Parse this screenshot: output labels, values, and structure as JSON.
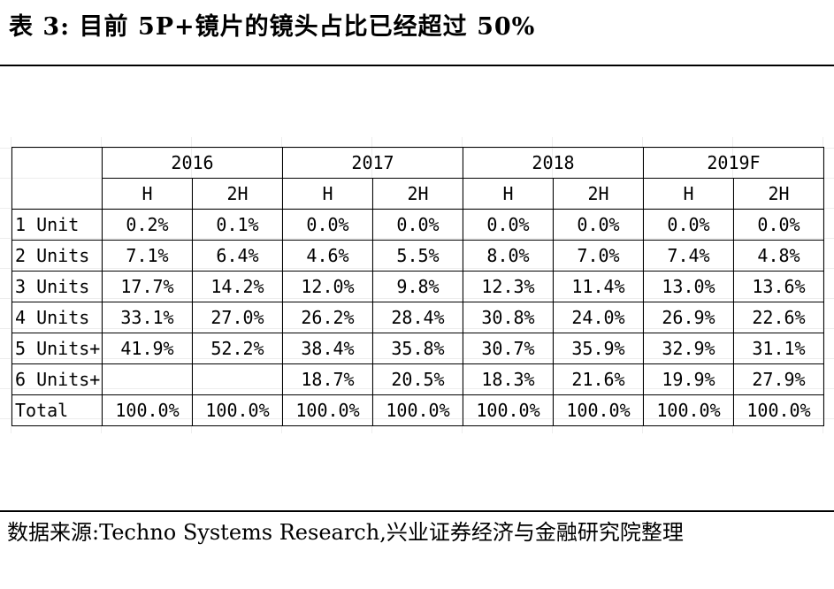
{
  "title": "表 3:  目前 5P+镜片的镜头占比已经超过 50%",
  "table": {
    "years": [
      "2016",
      "2017",
      "2018",
      "2019F"
    ],
    "halves": [
      "H",
      "2H",
      "H",
      "2H",
      "H",
      "2H",
      "H",
      "2H"
    ],
    "rows": [
      {
        "label": "1 Unit",
        "values": [
          "0.2%",
          "0.1%",
          "0.0%",
          "0.0%",
          "0.0%",
          "0.0%",
          "0.0%",
          "0.0%"
        ]
      },
      {
        "label": "2 Units",
        "values": [
          "7.1%",
          "6.4%",
          "4.6%",
          "5.5%",
          "8.0%",
          "7.0%",
          "7.4%",
          "4.8%"
        ]
      },
      {
        "label": "3 Units",
        "values": [
          "17.7%",
          "14.2%",
          "12.0%",
          "9.8%",
          "12.3%",
          "11.4%",
          "13.0%",
          "13.6%"
        ]
      },
      {
        "label": "4 Units",
        "values": [
          "33.1%",
          "27.0%",
          "26.2%",
          "28.4%",
          "30.8%",
          "24.0%",
          "26.9%",
          "22.6%"
        ]
      },
      {
        "label": "5 Units+",
        "values": [
          "41.9%",
          "52.2%",
          "38.4%",
          "35.8%",
          "30.7%",
          "35.9%",
          "32.9%",
          "31.1%"
        ]
      },
      {
        "label": "6 Units+",
        "values": [
          "",
          "",
          "18.7%",
          "20.5%",
          "18.3%",
          "21.6%",
          "19.9%",
          "27.9%"
        ]
      },
      {
        "label": "Total",
        "values": [
          "100.0%",
          "100.0%",
          "100.0%",
          "100.0%",
          "100.0%",
          "100.0%",
          "100.0%",
          "100.0%"
        ]
      }
    ]
  },
  "footer": "数据来源:Techno Systems Research,兴业证券经济与金融研究院整理"
}
